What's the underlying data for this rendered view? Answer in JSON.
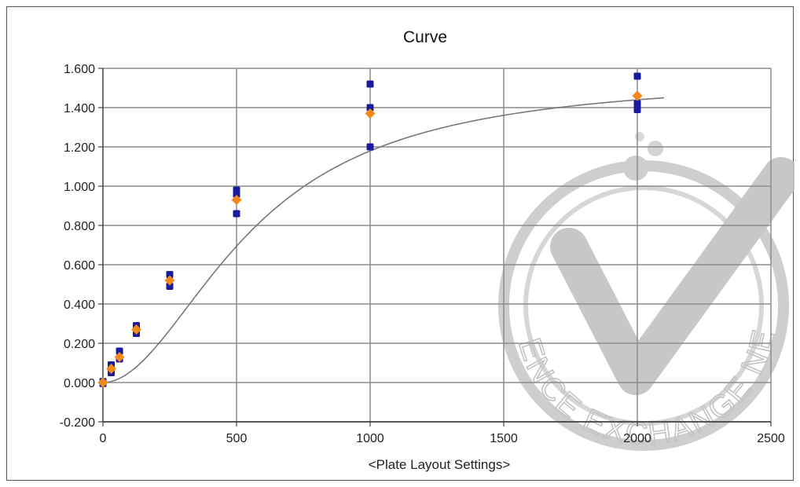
{
  "chart_data": {
    "type": "scatter",
    "title": "Curve",
    "xlabel": "<Plate Layout Settings>",
    "ylabel": "",
    "xlim": [
      0,
      2500
    ],
    "ylim": [
      -0.2,
      1.6
    ],
    "x_ticks": [
      "0",
      "500",
      "1000",
      "1500",
      "2000",
      "2500"
    ],
    "y_ticks": [
      "-0.200",
      "0.000",
      "0.200",
      "0.400",
      "0.600",
      "0.800",
      "1.000",
      "1.200",
      "1.400",
      "1.600"
    ],
    "grid": true,
    "legend": "none",
    "series": [
      {
        "kind": "points",
        "color": "#1a1a9c",
        "marker": "square",
        "points": [
          [
            0,
            0.005
          ],
          [
            0,
            -0.005
          ],
          [
            31,
            0.05
          ],
          [
            31,
            0.09
          ],
          [
            62,
            0.12
          ],
          [
            62,
            0.16
          ],
          [
            125,
            0.25
          ],
          [
            125,
            0.29
          ],
          [
            250,
            0.49
          ],
          [
            250,
            0.55
          ],
          [
            500,
            0.86
          ],
          [
            500,
            0.96
          ],
          [
            500,
            0.98
          ],
          [
            1000,
            1.2
          ],
          [
            1000,
            1.4
          ],
          [
            1000,
            1.52
          ],
          [
            2000,
            1.39
          ],
          [
            2000,
            1.42
          ],
          [
            2000,
            1.56
          ]
        ]
      },
      {
        "kind": "points",
        "color": "#f28a1b",
        "marker": "diamond",
        "points": [
          [
            0,
            0.0
          ],
          [
            31,
            0.07
          ],
          [
            62,
            0.13
          ],
          [
            125,
            0.27
          ],
          [
            250,
            0.52
          ],
          [
            500,
            0.93
          ],
          [
            1000,
            1.37
          ],
          [
            2000,
            1.46
          ]
        ]
      },
      {
        "kind": "fit",
        "color": "#777777",
        "model": "4pl",
        "params": {
          "a": 0.0,
          "d": 1.56,
          "c": 560,
          "b": 1.95
        },
        "x_range": [
          0,
          2100
        ]
      }
    ]
  },
  "watermark": {
    "text": "THE SCIENCE EXCHANGE NETWORK",
    "color": "#c4c4c4"
  }
}
